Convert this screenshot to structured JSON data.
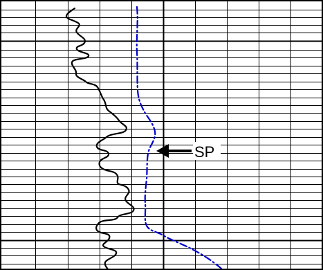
{
  "figure": {
    "annotation": {
      "label": "SP",
      "arrow_icon": "left-arrow-icon"
    },
    "curves": [
      {
        "id": "black-log-trace",
        "color": "#000000",
        "style": "solid"
      },
      {
        "id": "sp-curve",
        "color": "#0000cc",
        "style": "dash-dot"
      }
    ],
    "colors": {
      "grid": "#000000",
      "background": "#ffffff"
    }
  }
}
